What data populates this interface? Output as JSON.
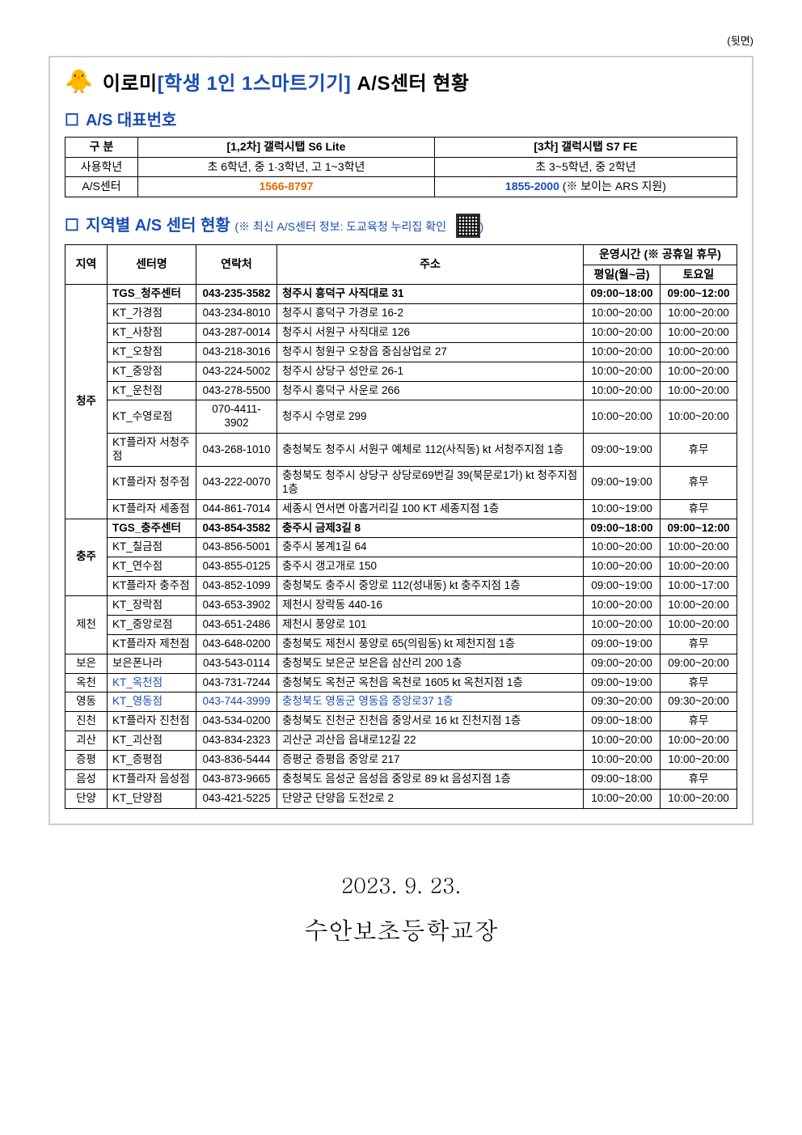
{
  "page_note": "(뒷면)",
  "title": {
    "prefix": "이로미",
    "blue_part": "[학생 1인 1스마트기기]",
    "suffix": " A/S센터 현황"
  },
  "section1": {
    "heading": "A/S 대표번호",
    "rows": {
      "category_label": "구 분",
      "col1_header": "[1,2차] 갤럭시탭 S6 Lite",
      "col2_header": "[3차] 갤럭시탭 S7 FE",
      "grade_label": "사용학년",
      "grade_col1": "초 6학년, 중 1·3학년, 고 1~3학년",
      "grade_col2": "초 3~5학년, 중 2학년",
      "as_label": "A/S센터",
      "as_col1": "1566-8797",
      "as_col2_num": "1855-2000",
      "as_col2_note": "  (※ 보이는 ARS 지원)"
    }
  },
  "section2": {
    "heading": "지역별 A/S 센터 현황",
    "subnote": "(※ 최신 A/S센터 정보: 도교육청 누리집 확인",
    "headers": {
      "region": "지역",
      "center": "센터명",
      "phone": "연락처",
      "addr": "주소",
      "hours": "운영시간 (※ 공휴일 휴무)",
      "weekday": "평일(월~금)",
      "saturday": "토요일"
    },
    "regions": [
      {
        "name": "청주",
        "rowspan": 10,
        "rows": [
          {
            "tgs": true,
            "center": "TGS_청주센터",
            "phone": "043-235-3582",
            "addr": "청주시 흥덕구 사직대로 31",
            "wd": "09:00~18:00",
            "sat": "09:00~12:00"
          },
          {
            "center": "KT_가경점",
            "phone": "043-234-8010",
            "addr": "청주시 흥덕구 가경로 16-2",
            "wd": "10:00~20:00",
            "sat": "10:00~20:00"
          },
          {
            "center": "KT_사창점",
            "phone": "043-287-0014",
            "addr": "청주시 서원구 사직대로 126",
            "wd": "10:00~20:00",
            "sat": "10:00~20:00"
          },
          {
            "center": "KT_오창점",
            "phone": "043-218-3016",
            "addr": "청주시 청원구 오창읍 중심상업로 27",
            "wd": "10:00~20:00",
            "sat": "10:00~20:00"
          },
          {
            "center": "KT_중앙점",
            "phone": "043-224-5002",
            "addr": "청주시 상당구 성안로 26-1",
            "wd": "10:00~20:00",
            "sat": "10:00~20:00"
          },
          {
            "center": "KT_운천점",
            "phone": "043-278-5500",
            "addr": "청주시 흥덕구 사운로 266",
            "wd": "10:00~20:00",
            "sat": "10:00~20:00"
          },
          {
            "center": "KT_수영로점",
            "phone": "070-4411-3902",
            "addr": "청주시 수영로 299",
            "wd": "10:00~20:00",
            "sat": "10:00~20:00"
          },
          {
            "center": "KT플라자 서청주점",
            "phone": "043-268-1010",
            "addr": "충청북도 청주시 서원구 예체로 112(사직동) kt 서청주지점 1층",
            "wd": "09:00~19:00",
            "sat": "휴무"
          },
          {
            "center": "KT플라자 청주점",
            "phone": "043-222-0070",
            "addr": "충청북도 청주시 상당구 상당로69번길 39(북문로1가) kt 청주지점 1층",
            "wd": "09:00~19:00",
            "sat": "휴무"
          },
          {
            "center": "KT플라자 세종점",
            "phone": "044-861-7014",
            "addr": "세종시 연서면 아홉거리길 100 KT 세종지점 1층",
            "wd": "10:00~19:00",
            "sat": "휴무"
          }
        ]
      },
      {
        "name": "충주",
        "rowspan": 4,
        "rows": [
          {
            "tgs": true,
            "center": "TGS_충주센터",
            "phone": "043-854-3582",
            "addr": "충주시 금제3길 8",
            "wd": "09:00~18:00",
            "sat": "09:00~12:00"
          },
          {
            "center": "KT_칠금점",
            "phone": "043-856-5001",
            "addr": "충주시 봉계1길 64",
            "wd": "10:00~20:00",
            "sat": "10:00~20:00"
          },
          {
            "center": "KT_연수점",
            "phone": "043-855-0125",
            "addr": "충주시 갱고개로 150",
            "wd": "10:00~20:00",
            "sat": "10:00~20:00"
          },
          {
            "center": "KT플라자 충주점",
            "phone": "043-852-1099",
            "addr": "충청북도 충주시 중앙로 112(성내동) kt 충주지점 1층",
            "wd": "09:00~19:00",
            "sat": "10:00~17:00"
          }
        ]
      },
      {
        "name": "제천",
        "rowspan": 3,
        "rows": [
          {
            "center": "KT_장락점",
            "phone": "043-653-3902",
            "addr": "제천시 장락동 440-16",
            "wd": "10:00~20:00",
            "sat": "10:00~20:00"
          },
          {
            "center": "KT_중앙로점",
            "phone": "043-651-2486",
            "addr": "제천시 풍양로 101",
            "wd": "10:00~20:00",
            "sat": "10:00~20:00"
          },
          {
            "center": "KT플라자 제천점",
            "phone": "043-648-0200",
            "addr": "충청북도 제천시 풍양로 65(의림동) kt 제천지점 1층",
            "wd": "09:00~19:00",
            "sat": "휴무"
          }
        ]
      },
      {
        "name": "보은",
        "rowspan": 1,
        "rows": [
          {
            "center": "보은폰나라",
            "phone": "043-543-0114",
            "addr": "충청북도 보은군 보은읍 삼산리 200 1층",
            "wd": "09:00~20:00",
            "sat": "09:00~20:00"
          }
        ]
      },
      {
        "name": "옥천",
        "rowspan": 1,
        "rows": [
          {
            "kt_link": true,
            "center": "KT_옥천점",
            "phone": "043-731-7244",
            "addr": "충청북도 옥천군 옥천읍 옥천로 1605 kt 옥천지점 1층",
            "wd": "09:00~19:00",
            "sat": "휴무"
          }
        ]
      },
      {
        "name": "영동",
        "rowspan": 1,
        "rows": [
          {
            "kt_link": true,
            "center": "KT_영동점",
            "phone": "043-744-3999",
            "addr": "충청북도 영동군 영동읍 중앙로37 1층",
            "wd": "09:30~20:00",
            "sat": "09:30~20:00",
            "addr_link": true,
            "phone_link": true
          }
        ]
      },
      {
        "name": "진천",
        "rowspan": 1,
        "rows": [
          {
            "center": "KT플라자 진천점",
            "phone": "043-534-0200",
            "addr": "충청북도 진천군 진천읍 중앙서로 16 kt 진천지점 1층",
            "wd": "09:00~18:00",
            "sat": "휴무"
          }
        ]
      },
      {
        "name": "괴산",
        "rowspan": 1,
        "rows": [
          {
            "center": "KT_괴산점",
            "phone": "043-834-2323",
            "addr": "괴산군 괴산읍 읍내로12길 22",
            "wd": "10:00~20:00",
            "sat": "10:00~20:00"
          }
        ]
      },
      {
        "name": "증평",
        "rowspan": 1,
        "rows": [
          {
            "center": "KT_증평점",
            "phone": "043-836-5444",
            "addr": "증평군 증평읍 중앙로 217",
            "wd": "10:00~20:00",
            "sat": "10:00~20:00"
          }
        ]
      },
      {
        "name": "음성",
        "rowspan": 1,
        "rows": [
          {
            "center": "KT플라자 음성점",
            "phone": "043-873-9665",
            "addr": "충청북도 음성군 음성읍 중앙로 89 kt 음성지점 1층",
            "wd": "09:00~18:00",
            "sat": "휴무"
          }
        ]
      },
      {
        "name": "단양",
        "rowspan": 1,
        "rows": [
          {
            "center": "KT_단양점",
            "phone": "043-421-5225",
            "addr": "단양군 단양읍 도전2로 2",
            "wd": "10:00~20:00",
            "sat": "10:00~20:00"
          }
        ]
      }
    ]
  },
  "footer": {
    "date": "2023. 9. 23.",
    "school": "수안보초등학교장"
  }
}
